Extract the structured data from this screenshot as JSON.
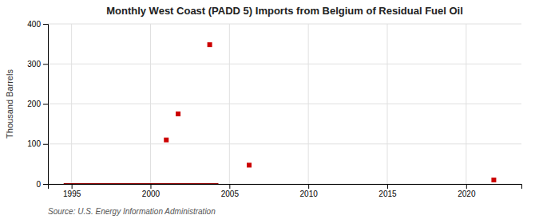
{
  "chart_data": {
    "type": "scatter",
    "title": "Monthly West Coast (PADD 5) Imports from Belgium of Residual Fuel Oil",
    "ylabel": "Thousand Barrels",
    "annotations": [
      "Source: U.S. Energy Information Administration"
    ],
    "series": [
      {
        "type": "line",
        "color": "#8b0000",
        "x": [
          1994.5,
          2004.3
        ],
        "values": [
          0,
          0
        ]
      },
      {
        "type": "scatter",
        "color": "#cc0000",
        "marker": "square",
        "x": [
          2001.0,
          2001.75,
          2003.75,
          2006.25,
          2021.75
        ],
        "values": [
          110,
          175,
          348,
          47,
          10
        ]
      }
    ],
    "xlim": [
      1993.5,
      2023.5
    ],
    "ylim": [
      0,
      400
    ],
    "xticks": [
      1995,
      2000,
      2005,
      2010,
      2015,
      2020
    ],
    "yticks": [
      0,
      100,
      200,
      300,
      400
    ],
    "grid": true
  }
}
